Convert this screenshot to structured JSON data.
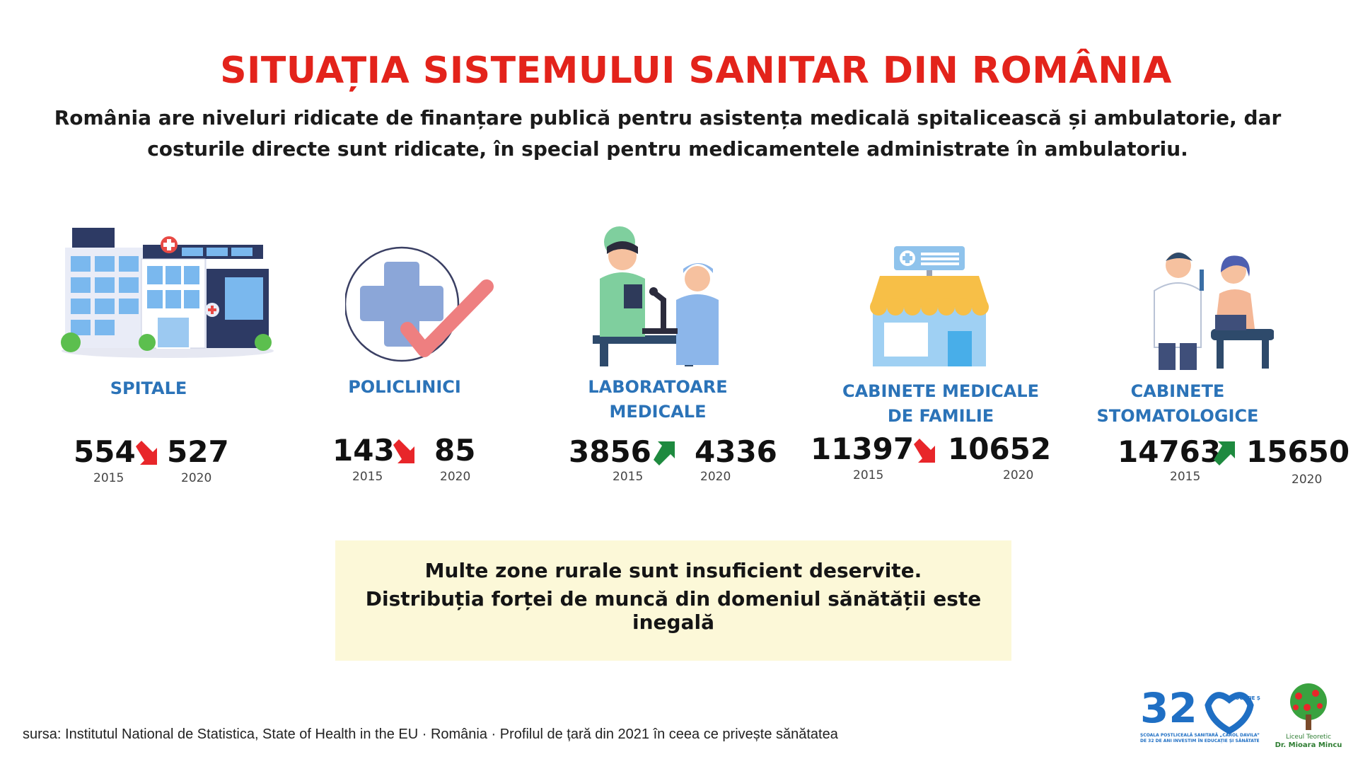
{
  "title": "SITUAȚIA SISTEMULUI SANITAR DIN ROMÂNIA",
  "intro": {
    "line1": "România are niveluri ridicate de finanțare publică pentru asistența medicală spitalicească și ambulatorie, dar",
    "line2": "costurile directe sunt ridicate,  în special pentru medicamentele administrate în ambulatoriu."
  },
  "stats": [
    {
      "label_lines": [
        "SPITALE"
      ],
      "from": "554",
      "to": "527",
      "from_year": "2015",
      "to_year": "2020",
      "trend": "down",
      "icon": "hospital-icon"
    },
    {
      "label_lines": [
        "POLICLINICI"
      ],
      "from": "143",
      "to": "85",
      "from_year": "2015",
      "to_year": "2020",
      "trend": "down",
      "icon": "medical-cross-check-icon"
    },
    {
      "label_lines": [
        "LABORATOARE",
        "MEDICALE"
      ],
      "from": "3856",
      "to": "4336",
      "from_year": "2015",
      "to_year": "2020",
      "trend": "up",
      "icon": "lab-staff-icon"
    },
    {
      "label_lines": [
        "CABINETE MEDICALE",
        "DE FAMILIE"
      ],
      "from": "11397",
      "to": "10652",
      "from_year": "2015",
      "to_year": "2020",
      "trend": "down",
      "icon": "clinic-building-icon"
    },
    {
      "label_lines": [
        "CABINETE",
        "STOMATOLOGICE"
      ],
      "from": "14763",
      "to": "15650",
      "from_year": "2015",
      "to_year": "2020",
      "trend": "up",
      "icon": "dentist-patient-icon"
    }
  ],
  "note": {
    "line1": "Multe zone rurale sunt insuficient deservite.",
    "line2": "Distribuția forței de muncă din domeniul sănătății este inegală"
  },
  "source": "sursa:   Institutul National de Statistica, State of Health in the EU · România · Profilul de țară din 2021 în ceea ce privește sănătatea",
  "logos": {
    "school": {
      "number": "32",
      "tag": "EDUCAȚIE ȘI SĂNĂTATE",
      "caption1": "ȘCOALA POSTLICEALĂ SANITARĂ „CAROL DAVILA”",
      "caption2": "DE 32 DE ANI INVESTIM ÎN EDUCAȚIE ȘI SĂNĂTATE"
    },
    "lyceum": {
      "caption1": "Liceul Teoretic",
      "caption2": "Dr. Mioara Mincu"
    }
  },
  "colors": {
    "title": "#e3231b",
    "label": "#2b73b8",
    "down_arrow": "#e8262a",
    "up_arrow": "#1e8a3f",
    "note_bg": "#fcf8d8"
  }
}
